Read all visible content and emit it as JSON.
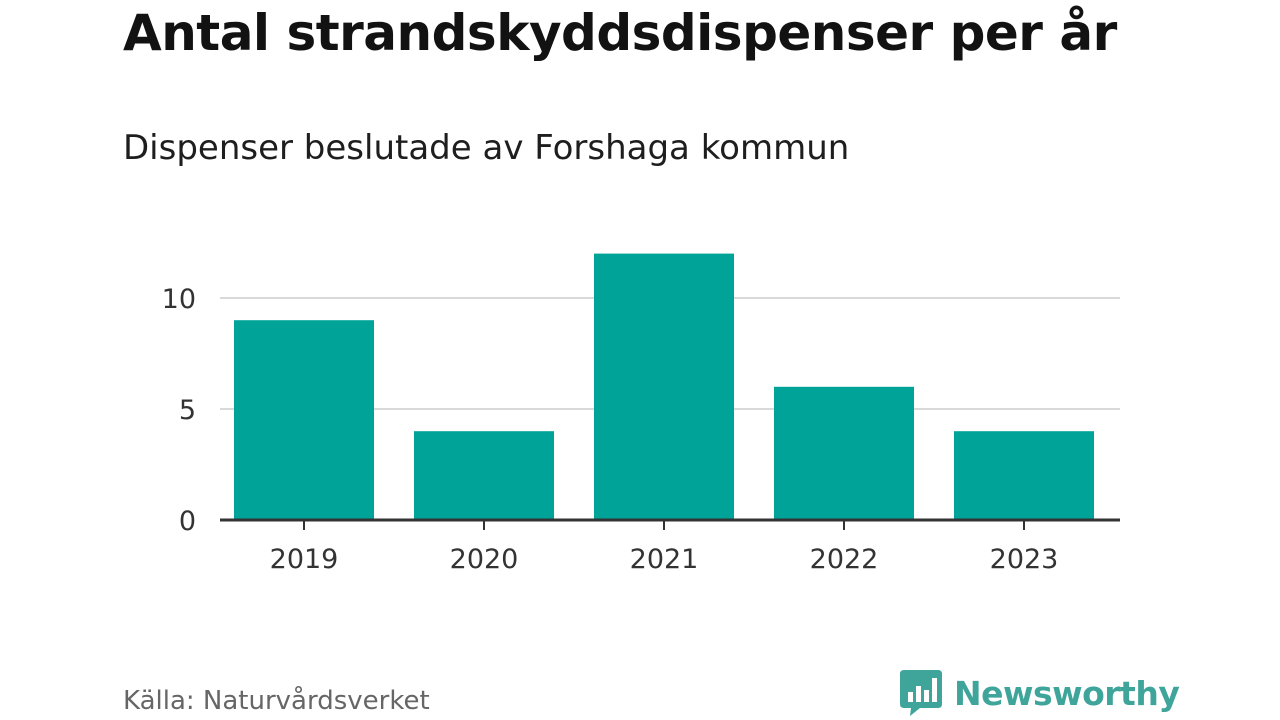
{
  "chart_data": {
    "type": "bar",
    "title": "Antal strandskyddsdispenser per år",
    "subtitle": "Dispenser beslutade av Forshaga kommun",
    "categories": [
      "2019",
      "2020",
      "2021",
      "2022",
      "2023"
    ],
    "values": [
      9,
      4,
      12,
      6,
      4
    ],
    "ylim": [
      0,
      12
    ],
    "yticks": [
      0,
      5,
      10
    ],
    "ytick_labels": [
      "0",
      "5",
      "10"
    ],
    "xlabel": "",
    "ylabel": "",
    "grid": true,
    "bar_color": "#00a398"
  },
  "footer": {
    "source": "Källa: Naturvårdsverket",
    "brand": "Newsworthy",
    "brand_color": "#3fa59b"
  }
}
